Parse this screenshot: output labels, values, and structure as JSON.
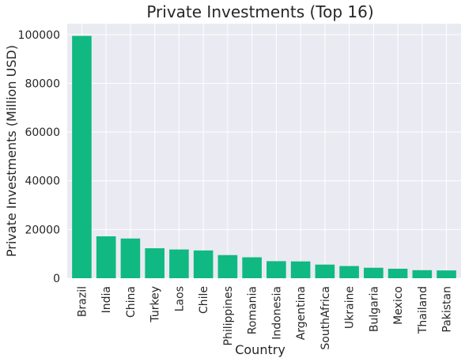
{
  "chart_data": {
    "type": "bar",
    "title": "Private Investments (Top 16)",
    "xlabel": "Country",
    "ylabel": "Private Investments (Million USD)",
    "categories": [
      "Brazil",
      "India",
      "China",
      "Turkey",
      "Laos",
      "Chile",
      "Philippines",
      "Romania",
      "Indonesia",
      "Argentina",
      "SouthAfrica",
      "Ukraine",
      "Bulgaria",
      "Mexico",
      "Thailand",
      "Pakistan"
    ],
    "values": [
      99500,
      17200,
      16300,
      12300,
      11800,
      11400,
      9500,
      8600,
      7000,
      6900,
      5600,
      5000,
      4300,
      3900,
      3300,
      3200
    ],
    "ylim": [
      0,
      104500
    ],
    "yticks": [
      0,
      20000,
      40000,
      60000,
      80000,
      100000
    ],
    "grid": true,
    "bar_color": "#10b981",
    "background_color": "#eaeaf2"
  }
}
